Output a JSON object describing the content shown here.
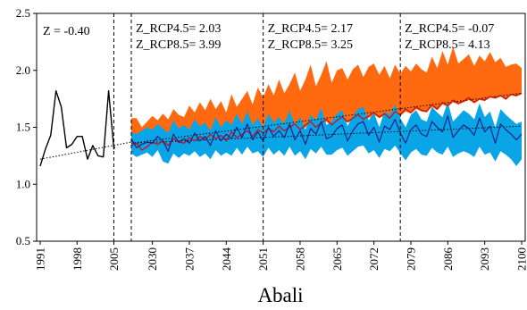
{
  "chart_data": {
    "type": "line",
    "title": "Abali",
    "xlabel": "",
    "ylabel": "",
    "ylim": [
      0.5,
      2.5
    ],
    "yticks": [
      "0.5",
      "1.0",
      "1.5",
      "2.0",
      "2.5"
    ],
    "xticks": [
      "1991",
      "1998",
      "2005",
      "2030",
      "2037",
      "2044",
      "2051",
      "2058",
      "2065",
      "2072",
      "2079",
      "2086",
      "2093",
      "2100"
    ],
    "grid": false,
    "legend": "none",
    "colors": {
      "observed": "#000000",
      "rcp45_band": "#0aa5e6",
      "rcp85_band": "#ff6a10",
      "rcp45_line": "#1a2a8c",
      "rcp85_line": "#c0161a",
      "trend": "#000000"
    },
    "periods": [
      {
        "start": 1991,
        "end": 2005,
        "z_label": "Z = -0.40"
      },
      {
        "start": 2026,
        "end": 2051,
        "z45_label": "Z_RCP4.5= 2.03",
        "z85_label": "Z_RCP8.5= 3.99"
      },
      {
        "start": 2051,
        "end": 2077,
        "z45_label": "Z_RCP4.5= 2.17",
        "z85_label": "Z_RCP8.5= 3.25"
      },
      {
        "start": 2077,
        "end": 2100,
        "z45_label": "Z_RCP4.5= -0.07",
        "z85_label": "Z_RCP8.5= 4.13"
      }
    ],
    "observed": {
      "x": [
        1991,
        1992,
        1993,
        1994,
        1995,
        1996,
        1997,
        1998,
        1999,
        2000,
        2001,
        2002,
        2003,
        2004,
        2005,
        2006
      ],
      "y": [
        1.16,
        1.31,
        1.43,
        1.82,
        1.68,
        1.32,
        1.35,
        1.42,
        1.42,
        1.22,
        1.34,
        1.25,
        1.24,
        1.82,
        1.31,
        1.33
      ]
    },
    "projection_years": [
      2026,
      2100
    ],
    "rcp45_mean": [
      1.4,
      1.32,
      1.35,
      1.37,
      1.36,
      1.42,
      1.38,
      1.29,
      1.44,
      1.37,
      1.4,
      1.36,
      1.45,
      1.38,
      1.42,
      1.34,
      1.47,
      1.38,
      1.44,
      1.4,
      1.5,
      1.41,
      1.53,
      1.39,
      1.46,
      1.38,
      1.5,
      1.42,
      1.47,
      1.41,
      1.53,
      1.39,
      1.47,
      1.35,
      1.49,
      1.44,
      1.55,
      1.4,
      1.42,
      1.49,
      1.52,
      1.38,
      1.47,
      1.53,
      1.55,
      1.43,
      1.5,
      1.37,
      1.51,
      1.48,
      1.57,
      1.45,
      1.36,
      1.48,
      1.52,
      1.44,
      1.42,
      1.55,
      1.5,
      1.46,
      1.6,
      1.41,
      1.47,
      1.52,
      1.49,
      1.43,
      1.58,
      1.46,
      1.51,
      1.36,
      1.53,
      1.48,
      1.44,
      1.39,
      1.44
    ],
    "rcp45_low": [
      1.27,
      1.24,
      1.26,
      1.28,
      1.24,
      1.3,
      1.2,
      1.18,
      1.27,
      1.23,
      1.27,
      1.25,
      1.29,
      1.24,
      1.27,
      1.22,
      1.3,
      1.25,
      1.28,
      1.25,
      1.32,
      1.26,
      1.33,
      1.27,
      1.29,
      1.24,
      1.32,
      1.26,
      1.3,
      1.25,
      1.33,
      1.25,
      1.29,
      1.22,
      1.31,
      1.27,
      1.33,
      1.26,
      1.26,
      1.3,
      1.32,
      1.25,
      1.29,
      1.33,
      1.34,
      1.27,
      1.3,
      1.23,
      1.31,
      1.29,
      1.34,
      1.27,
      1.21,
      1.28,
      1.31,
      1.26,
      1.25,
      1.32,
      1.28,
      1.26,
      1.33,
      1.24,
      1.27,
      1.29,
      1.27,
      1.24,
      1.33,
      1.26,
      1.28,
      1.2,
      1.29,
      1.26,
      1.22,
      1.16,
      1.22
    ],
    "rcp45_high": [
      1.46,
      1.44,
      1.47,
      1.5,
      1.48,
      1.53,
      1.49,
      1.45,
      1.56,
      1.49,
      1.52,
      1.48,
      1.57,
      1.51,
      1.54,
      1.47,
      1.59,
      1.5,
      1.56,
      1.52,
      1.62,
      1.53,
      1.64,
      1.52,
      1.58,
      1.5,
      1.62,
      1.54,
      1.59,
      1.53,
      1.65,
      1.52,
      1.59,
      1.48,
      1.61,
      1.56,
      1.67,
      1.52,
      1.55,
      1.62,
      1.65,
      1.51,
      1.6,
      1.66,
      1.68,
      1.56,
      1.63,
      1.5,
      1.64,
      1.61,
      1.7,
      1.58,
      1.5,
      1.61,
      1.65,
      1.57,
      1.55,
      1.68,
      1.63,
      1.59,
      1.72,
      1.55,
      1.6,
      1.65,
      1.62,
      1.57,
      1.71,
      1.59,
      1.64,
      1.5,
      1.66,
      1.61,
      1.57,
      1.53,
      1.55
    ],
    "rcp85_mean": [
      1.34,
      1.36,
      1.3,
      1.33,
      1.37,
      1.35,
      1.38,
      1.34,
      1.4,
      1.37,
      1.36,
      1.41,
      1.38,
      1.42,
      1.39,
      1.44,
      1.4,
      1.43,
      1.38,
      1.46,
      1.41,
      1.44,
      1.47,
      1.42,
      1.48,
      1.45,
      1.49,
      1.46,
      1.51,
      1.47,
      1.5,
      1.53,
      1.48,
      1.52,
      1.55,
      1.5,
      1.54,
      1.57,
      1.52,
      1.56,
      1.59,
      1.55,
      1.58,
      1.61,
      1.57,
      1.6,
      1.63,
      1.59,
      1.62,
      1.58,
      1.64,
      1.61,
      1.66,
      1.63,
      1.68,
      1.65,
      1.64,
      1.7,
      1.66,
      1.72,
      1.69,
      1.74,
      1.71,
      1.73,
      1.76,
      1.72,
      1.75,
      1.74,
      1.77,
      1.76,
      1.78,
      1.75,
      1.79,
      1.78,
      1.8
    ],
    "rcp85_low": [
      1.32,
      1.34,
      1.28,
      1.32,
      1.35,
      1.33,
      1.36,
      1.32,
      1.38,
      1.36,
      1.34,
      1.39,
      1.37,
      1.4,
      1.38,
      1.42,
      1.38,
      1.41,
      1.37,
      1.44,
      1.4,
      1.42,
      1.45,
      1.41,
      1.46,
      1.43,
      1.47,
      1.45,
      1.49,
      1.46,
      1.48,
      1.51,
      1.47,
      1.5,
      1.53,
      1.49,
      1.52,
      1.55,
      1.51,
      1.54,
      1.57,
      1.54,
      1.56,
      1.59,
      1.56,
      1.58,
      1.61,
      1.58,
      1.6,
      1.57,
      1.62,
      1.6,
      1.64,
      1.62,
      1.66,
      1.64,
      1.63,
      1.68,
      1.65,
      1.7,
      1.68,
      1.72,
      1.7,
      1.72,
      1.74,
      1.71,
      1.74,
      1.73,
      1.76,
      1.75,
      1.77,
      1.74,
      1.78,
      1.77,
      1.79
    ],
    "rcp85_high": [
      1.58,
      1.58,
      1.5,
      1.55,
      1.6,
      1.56,
      1.62,
      1.57,
      1.66,
      1.61,
      1.59,
      1.69,
      1.63,
      1.72,
      1.65,
      1.75,
      1.66,
      1.73,
      1.63,
      1.79,
      1.68,
      1.75,
      1.82,
      1.7,
      1.85,
      1.76,
      1.88,
      1.78,
      1.92,
      1.8,
      1.88,
      1.98,
      1.82,
      1.92,
      2.05,
      1.86,
      1.96,
      2.08,
      1.89,
      2.0,
      2.02,
      1.92,
      2.01,
      2.05,
      1.94,
      2.03,
      2.06,
      1.96,
      2.04,
      1.93,
      2.05,
      1.97,
      2.04,
      1.99,
      2.06,
      2.01,
      1.98,
      2.12,
      2.02,
      2.17,
      2.05,
      2.21,
      2.06,
      2.1,
      2.14,
      2.04,
      2.13,
      2.08,
      2.16,
      2.07,
      2.11,
      2.03,
      2.05,
      2.06,
      2.02
    ],
    "trendlines": [
      {
        "x": [
          1991,
          2026
        ],
        "y": [
          1.22,
          1.37
        ]
      },
      {
        "x": [
          2026,
          2100
        ],
        "y": [
          1.36,
          1.51
        ]
      },
      {
        "x": [
          2026,
          2100
        ],
        "y": [
          1.36,
          1.8
        ]
      }
    ]
  }
}
